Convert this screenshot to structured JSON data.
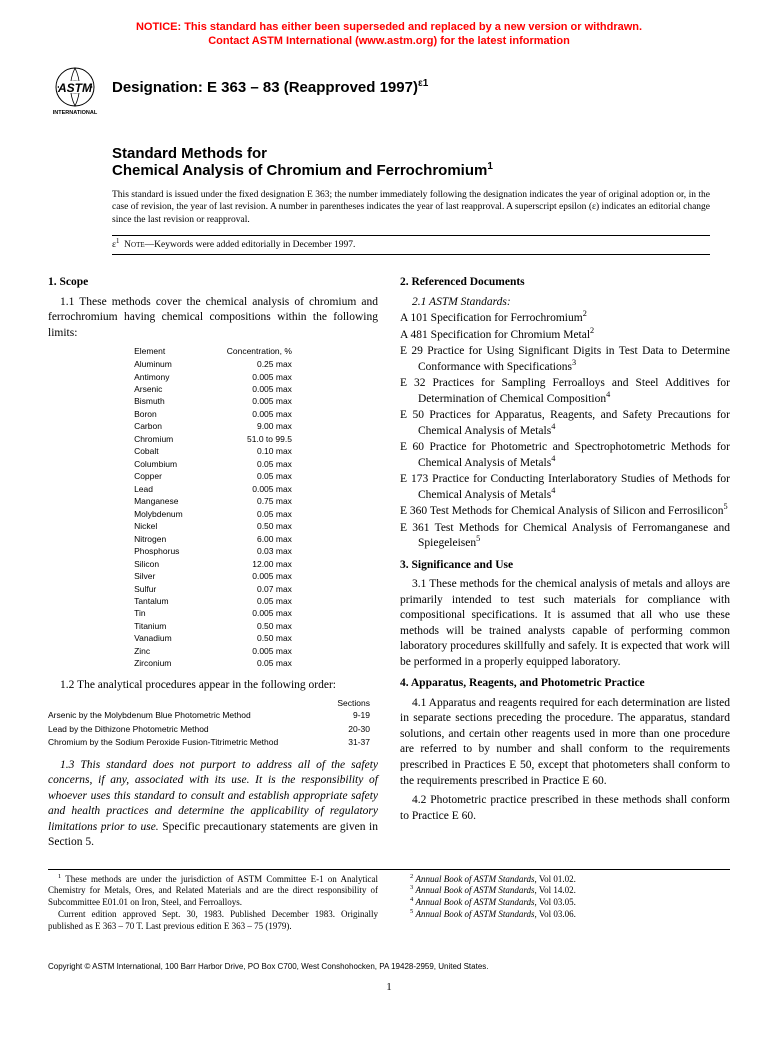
{
  "notice": {
    "line1": "NOTICE: This standard has either been superseded and replaced by a new version or withdrawn.",
    "line2": "Contact ASTM International (www.astm.org) for the latest information",
    "color": "#ff0000"
  },
  "logo": {
    "label": "ASTM INTERNATIONAL",
    "text_top": "INTERNATIONAL"
  },
  "designation": {
    "label": "Designation: E 363 – 83 (Reapproved 1997)",
    "superscript": "ε1"
  },
  "title": {
    "pre": "Standard Methods for",
    "main": "Chemical Analysis of Chromium and Ferrochromium",
    "superscript": "1"
  },
  "issuance": "This standard is issued under the fixed designation E 363; the number immediately following the designation indicates the year of original adoption or, in the case of revision, the year of last revision. A number in parentheses indicates the year of last reapproval. A superscript epsilon (ε) indicates an editorial change since the last revision or reapproval.",
  "epsilon_note": {
    "prefix": "ε",
    "sup": "1",
    "label": "NOTE",
    "text": "—Keywords were added editorially in December 1997."
  },
  "scope": {
    "heading": "1. Scope",
    "p1": "1.1 These methods cover the chemical analysis of chromium and ferrochromium having chemical compositions within the following limits:",
    "table_headers": [
      "Element",
      "Concentration, %"
    ],
    "elements": [
      [
        "Aluminum",
        "0.25 max"
      ],
      [
        "Antimony",
        "0.005 max"
      ],
      [
        "Arsenic",
        "0.005 max"
      ],
      [
        "Bismuth",
        "0.005 max"
      ],
      [
        "Boron",
        "0.005 max"
      ],
      [
        "Carbon",
        "9.00 max"
      ],
      [
        "Chromium",
        "51.0 to 99.5"
      ],
      [
        "Cobalt",
        "0.10 max"
      ],
      [
        "Columbium",
        "0.05 max"
      ],
      [
        "Copper",
        "0.05 max"
      ],
      [
        "Lead",
        "0.005 max"
      ],
      [
        "Manganese",
        "0.75 max"
      ],
      [
        "Molybdenum",
        "0.05 max"
      ],
      [
        "Nickel",
        "0.50 max"
      ],
      [
        "Nitrogen",
        "6.00 max"
      ],
      [
        "Phosphorus",
        "0.03 max"
      ],
      [
        "Silicon",
        "12.00 max"
      ],
      [
        "Silver",
        "0.005 max"
      ],
      [
        "Sulfur",
        "0.07 max"
      ],
      [
        "Tantalum",
        "0.05 max"
      ],
      [
        "Tin",
        "0.005 max"
      ],
      [
        "Titanium",
        "0.50 max"
      ],
      [
        "Vanadium",
        "0.50 max"
      ],
      [
        "Zinc",
        "0.005 max"
      ],
      [
        "Zirconium",
        "0.05 max"
      ]
    ],
    "p2": "1.2 The analytical procedures appear in the following order:",
    "proc_header": "Sections",
    "procedures": [
      [
        "Arsenic by the Molybdenum Blue Photometric Method",
        "9-19"
      ],
      [
        "Lead by the Dithizone Photometric Method",
        "20-30"
      ],
      [
        "Chromium by the Sodium Peroxide Fusion-Titrimetric Method",
        "31-37"
      ]
    ],
    "p3_italic": "1.3 This standard does not purport to address all of the safety concerns, if any, associated with its use. It is the responsibility of whoever uses this standard to consult and establish appropriate safety and health practices and determine the applicability of regulatory limitations prior to use.",
    "p3_tail": " Specific precautionary statements are given in Section 5."
  },
  "referenced": {
    "heading": "2. Referenced Documents",
    "sub": "2.1 ASTM Standards:",
    "items": [
      {
        "t": "A 101 Specification for Ferrochromium",
        "s": "2"
      },
      {
        "t": "A 481 Specification for Chromium Metal",
        "s": "2"
      },
      {
        "t": "E 29 Practice for Using Significant Digits in Test Data to Determine Conformance with Specifications",
        "s": "3"
      },
      {
        "t": "E 32 Practices for Sampling Ferroalloys and Steel Additives for Determination of Chemical Composition",
        "s": "4"
      },
      {
        "t": "E 50 Practices for Apparatus, Reagents, and Safety Precautions for Chemical Analysis of Metals",
        "s": "4"
      },
      {
        "t": "E 60 Practice for Photometric and Spectrophotometric Methods for Chemical Analysis of Metals",
        "s": "4"
      },
      {
        "t": "E 173 Practice for Conducting Interlaboratory Studies of Methods for Chemical Analysis of Metals",
        "s": "4"
      },
      {
        "t": "E 360 Test Methods for Chemical Analysis of Silicon and Ferrosilicon",
        "s": "5"
      },
      {
        "t": "E 361 Test Methods for Chemical Analysis of Ferromanganese and Spiegeleisen",
        "s": "5"
      }
    ]
  },
  "significance": {
    "heading": "3. Significance and Use",
    "p1": "3.1 These methods for the chemical analysis of metals and alloys are primarily intended to test such materials for compliance with compositional specifications. It is assumed that all who use these methods will be trained analysts capable of performing common laboratory procedures skillfully and safely. It is expected that work will be performed in a properly equipped laboratory."
  },
  "apparatus": {
    "heading": "4. Apparatus, Reagents, and Photometric Practice",
    "p1": "4.1 Apparatus and reagents required for each determination are listed in separate sections preceding the procedure. The apparatus, standard solutions, and certain other reagents used in more than one procedure are referred to by number and shall conform to the requirements prescribed in Practices E 50, except that photometers shall conform to the requirements prescribed in Practice E 60.",
    "p2": "4.2 Photometric practice prescribed in these methods shall conform to Practice E 60."
  },
  "footnotes": {
    "left": [
      "These methods are under the jurisdiction of ASTM Committee E-1 on Analytical Chemistry for Metals, Ores, and Related Materials and are the direct responsibility of Subcommittee E01.01 on Iron, Steel, and Ferroalloys.",
      "Current edition approved Sept. 30, 1983. Published December 1983. Originally published as E 363 – 70 T. Last previous edition E 363 – 75 (1979)."
    ],
    "left_sup": "1",
    "right": [
      {
        "s": "2",
        "t": "Annual Book of ASTM Standards, Vol 01.02."
      },
      {
        "s": "3",
        "t": "Annual Book of ASTM Standards, Vol 14.02."
      },
      {
        "s": "4",
        "t": "Annual Book of ASTM Standards, Vol 03.05."
      },
      {
        "s": "5",
        "t": "Annual Book of ASTM Standards, Vol 03.06."
      }
    ],
    "right_italic_prefix": "Annual Book of ASTM Standards"
  },
  "copyright": "Copyright © ASTM International, 100 Barr Harbor Drive, PO Box C700, West Conshohocken, PA 19428-2959, United States.",
  "page_number": "1"
}
